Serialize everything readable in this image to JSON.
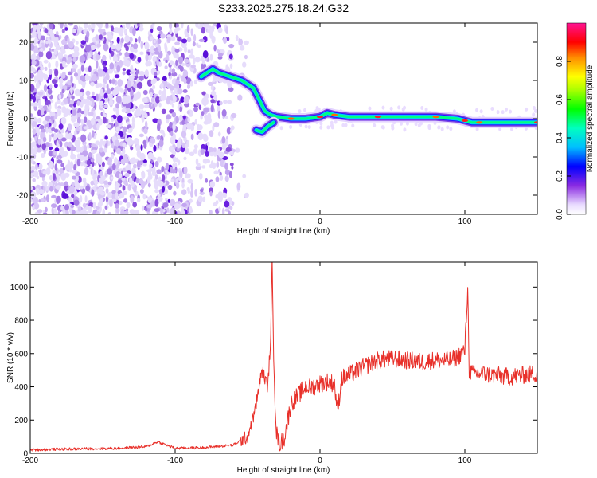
{
  "figure_title": "S233.2025.275.18.24.G32",
  "chart_data": [
    {
      "type": "heatmap",
      "title": "S233.2025.275.18.24.G32",
      "xlabel": "Height of straight line (km)",
      "ylabel": "Frequency (Hz)",
      "xlim": [
        -200,
        150
      ],
      "ylim": [
        -25,
        25
      ],
      "xticks": [
        -200,
        -100,
        0,
        100
      ],
      "yticks": [
        -20,
        -10,
        0,
        10,
        20
      ],
      "colorbar": {
        "label": "Normalized spectral amplitude",
        "range": [
          0,
          1
        ],
        "ticks": [
          0.0,
          0.2,
          0.4,
          0.6,
          0.8
        ]
      },
      "ridge": {
        "description": "dominant frequency vs height",
        "points": [
          [
            -82,
            11
          ],
          [
            -78,
            12
          ],
          [
            -74,
            13
          ],
          [
            -70,
            12
          ],
          [
            -66,
            11.5
          ],
          [
            -62,
            11
          ],
          [
            -58,
            10.5
          ],
          [
            -54,
            10
          ],
          [
            -50,
            9
          ],
          [
            -46,
            8
          ],
          [
            -42,
            5
          ],
          [
            -38,
            2
          ],
          [
            -34,
            1
          ],
          [
            -30,
            0.5
          ],
          [
            -20,
            0
          ],
          [
            -10,
            0
          ],
          [
            0,
            0.5
          ],
          [
            5,
            1.5
          ],
          [
            10,
            1
          ],
          [
            20,
            0.5
          ],
          [
            40,
            0.5
          ],
          [
            60,
            0.5
          ],
          [
            80,
            0.5
          ],
          [
            95,
            0
          ],
          [
            100,
            -0.5
          ],
          [
            105,
            -1
          ],
          [
            110,
            -1
          ],
          [
            130,
            -1
          ],
          [
            150,
            -1
          ]
        ],
        "secondary_points": [
          [
            -44,
            -3
          ],
          [
            -40,
            -3.5
          ],
          [
            -36,
            -2
          ],
          [
            -32,
            -1
          ]
        ]
      }
    },
    {
      "type": "line",
      "xlabel": "Height of straight line (km)",
      "ylabel": "SNR (10 * v/v)",
      "xlim": [
        -200,
        150
      ],
      "ylim": [
        0,
        1150
      ],
      "xticks": [
        -200,
        -100,
        0,
        100
      ],
      "yticks": [
        0,
        200,
        400,
        600,
        800,
        1000
      ],
      "series": [
        {
          "name": "SNR",
          "color": "#e8302a",
          "x": [
            -200,
            -180,
            -160,
            -140,
            -120,
            -112,
            -100,
            -80,
            -60,
            -50,
            -45,
            -40,
            -36,
            -34,
            -33,
            -32,
            -31,
            -30,
            -28,
            -25,
            -20,
            -15,
            -10,
            -5,
            0,
            5,
            10,
            12,
            15,
            20,
            30,
            40,
            50,
            60,
            70,
            80,
            90,
            95,
            100,
            102,
            103,
            105,
            110,
            120,
            130,
            140,
            150
          ],
          "values": [
            20,
            25,
            28,
            30,
            40,
            70,
            30,
            35,
            50,
            100,
            250,
            500,
            400,
            700,
            1150,
            600,
            300,
            120,
            60,
            80,
            300,
            350,
            400,
            400,
            420,
            430,
            420,
            250,
            450,
            470,
            520,
            560,
            570,
            560,
            550,
            560,
            560,
            580,
            620,
            1000,
            500,
            480,
            480,
            470,
            460,
            470,
            480
          ]
        }
      ]
    }
  ]
}
